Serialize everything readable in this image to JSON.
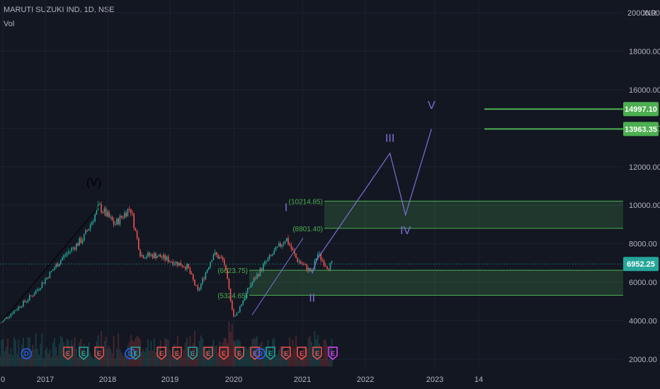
{
  "header": {
    "symbol": "MARUTI SUZUKI IND, 1D, NSE",
    "indicator": "Vol"
  },
  "colors": {
    "background": "#131722",
    "up": "#26a69a",
    "down": "#ef5350",
    "zone": "#4caf50",
    "wave": "#7e6fd6",
    "text": "#b2b5be",
    "priceline": "#26a69a"
  },
  "chart_data": {
    "type": "candlestick",
    "y_axis": {
      "ticks": [
        2000,
        4000,
        6000,
        8000,
        10000,
        12000,
        14000,
        16000,
        18000,
        20000
      ],
      "tick_labels": [
        "2000.00",
        "4000.00",
        "6000.00",
        "8000.00",
        "10000.00",
        "12000.00",
        "14000.00",
        "16000.00",
        "18000.00",
        "20000.00"
      ],
      "unit": "INR",
      "range": [
        1500,
        20500
      ]
    },
    "x_axis": {
      "tick_labels": [
        "0",
        "2017",
        "2018",
        "2019",
        "2020",
        "2021",
        "2022",
        "2023",
        "14"
      ]
    },
    "price_path": [
      {
        "date": "2016-06",
        "price": 3900
      },
      {
        "date": "2016-12",
        "price": 5300
      },
      {
        "date": "2017-01",
        "price": 5600
      },
      {
        "date": "2017-06",
        "price": 7300
      },
      {
        "date": "2017-10",
        "price": 8300
      },
      {
        "date": "2018-01",
        "price": 9950
      },
      {
        "date": "2018-04",
        "price": 9000
      },
      {
        "date": "2018-07",
        "price": 9900
      },
      {
        "date": "2018-09",
        "price": 7400
      },
      {
        "date": "2018-12",
        "price": 7400
      },
      {
        "date": "2019-06",
        "price": 6800
      },
      {
        "date": "2019-08",
        "price": 5500
      },
      {
        "date": "2019-11",
        "price": 7500
      },
      {
        "date": "2020-01",
        "price": 7100
      },
      {
        "date": "2020-03",
        "price": 4100
      },
      {
        "date": "2020-06",
        "price": 5800
      },
      {
        "date": "2020-09",
        "price": 7000
      },
      {
        "date": "2021-01",
        "price": 8300
      },
      {
        "date": "2021-03",
        "price": 7200
      },
      {
        "date": "2021-06",
        "price": 6500
      },
      {
        "date": "2021-07",
        "price": 7500
      },
      {
        "date": "2021-09",
        "price": 6800
      },
      {
        "date": "2021-10",
        "price": 6952.25
      }
    ],
    "last_price": 6952.25,
    "last_price_label": "6952.25",
    "levels": [
      {
        "value": 14997.1,
        "label": "14997.10"
      },
      {
        "value": 13963.35,
        "label": "13963.35"
      }
    ],
    "zones": [
      {
        "upper": 10214.85,
        "lower": 8801.4,
        "upper_label": "(10214.85)",
        "lower_label": "(8801.40)"
      },
      {
        "upper": 6623.75,
        "lower": 5324.65,
        "upper_label": "(6623.75)",
        "lower_label": "(5324.65)"
      }
    ],
    "wave_labels": [
      {
        "label": "(V)",
        "date": "2017-12",
        "price": 11000
      },
      {
        "label": "I",
        "date": "2021-01",
        "price": 9700
      },
      {
        "label": "II",
        "date": "2021-06",
        "price": 5000
      },
      {
        "label": "III",
        "date": "2022-09",
        "price": 13300
      },
      {
        "label": "IV",
        "date": "2022-12",
        "price": 8500
      },
      {
        "label": "V",
        "date": "2023-05",
        "price": 15000
      }
    ],
    "projection": [
      {
        "date": "2021-06",
        "price": 6450
      },
      {
        "date": "2021-07",
        "price": 7200
      },
      {
        "date": "2022-09",
        "price": 12700
      },
      {
        "date": "2022-12",
        "price": 9500
      },
      {
        "date": "2023-05",
        "price": 13963.35
      }
    ],
    "trendline": [
      {
        "date": "2016-06",
        "price": 3900
      },
      {
        "date": "2018-01",
        "price": 9950
      }
    ],
    "events": [
      {
        "type": "D",
        "date": "2016-11"
      },
      {
        "type": "E",
        "date": "2017-07"
      },
      {
        "type": "E",
        "date": "2017-10"
      },
      {
        "type": "E",
        "date": "2018-01"
      },
      {
        "type": "D",
        "date": "2018-07"
      },
      {
        "type": "E",
        "date": "2018-08"
      },
      {
        "type": "E",
        "date": "2019-01"
      },
      {
        "type": "E",
        "date": "2019-04"
      },
      {
        "type": "E",
        "date": "2019-07"
      },
      {
        "type": "E",
        "date": "2019-10"
      },
      {
        "type": "E",
        "date": "2020-01"
      },
      {
        "type": "E",
        "date": "2020-04"
      },
      {
        "type": "E",
        "date": "2020-07"
      },
      {
        "type": "D",
        "date": "2020-08"
      },
      {
        "type": "E",
        "date": "2020-10"
      },
      {
        "type": "E",
        "date": "2021-01"
      },
      {
        "type": "E",
        "date": "2021-04"
      },
      {
        "type": "E",
        "date": "2021-07"
      },
      {
        "type": "E",
        "date": "2021-10"
      }
    ]
  }
}
